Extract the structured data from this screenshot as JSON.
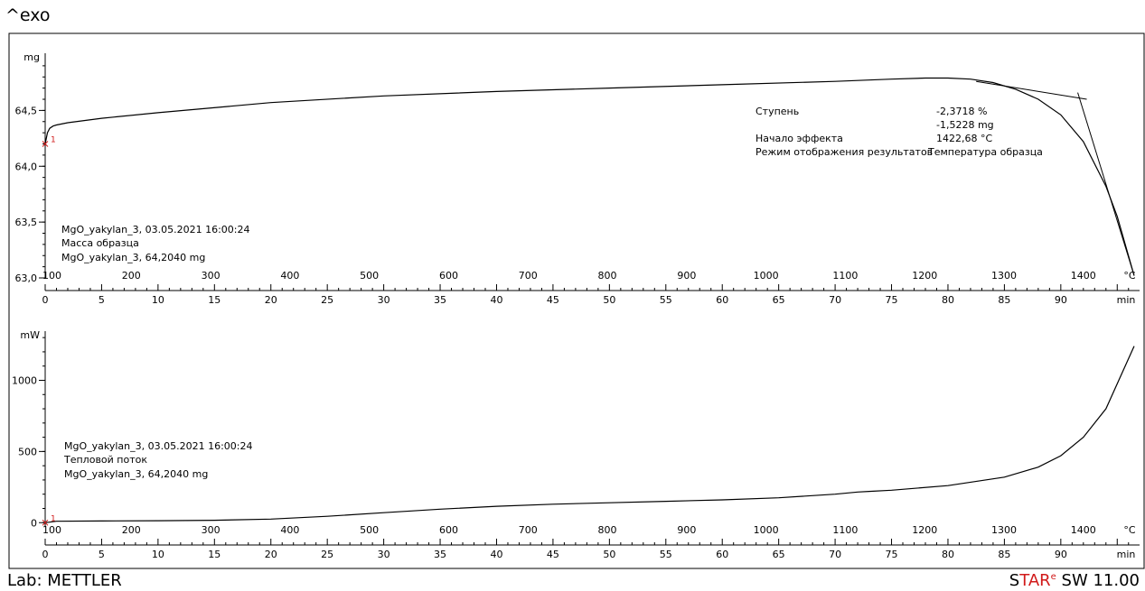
{
  "header": {
    "exo_label": "^exo"
  },
  "footer": {
    "lab": "Lab: METTLER",
    "software_star_s": "S",
    "software_tar": "TAR",
    "software_e": "e",
    "software_rest": " SW 11.00"
  },
  "chart_data": [
    {
      "type": "line",
      "name": "top-tga",
      "ylabel": "mg",
      "ylim": [
        63.0,
        64.98
      ],
      "yticks": [
        63.0,
        63.5,
        64.0,
        64.5
      ],
      "ytick_labels": [
        "63,0",
        "63,5",
        "64,0",
        "64,5"
      ],
      "time_axis": {
        "unit": "min",
        "lim": [
          0,
          96.5
        ],
        "ticks": [
          0,
          5,
          10,
          15,
          20,
          25,
          30,
          35,
          40,
          45,
          50,
          55,
          60,
          65,
          70,
          75,
          80,
          85,
          90
        ]
      },
      "temp_axis": {
        "unit": "°C",
        "ticks": [
          100,
          200,
          300,
          400,
          500,
          600,
          700,
          800,
          900,
          1000,
          1100,
          1200,
          1300,
          1400
        ]
      },
      "series": [
        {
          "x": [
            0,
            0.2,
            0.4,
            0.7,
            1,
            2,
            5,
            10,
            20,
            30,
            40,
            50,
            60,
            70,
            75,
            78,
            80,
            82,
            84,
            86,
            88,
            90,
            92,
            94,
            95,
            96.5
          ],
          "y": [
            64.2,
            64.3,
            64.34,
            64.36,
            64.37,
            64.39,
            64.43,
            64.48,
            64.57,
            64.63,
            64.67,
            64.7,
            64.73,
            64.76,
            64.78,
            64.79,
            64.79,
            64.78,
            64.75,
            64.69,
            64.6,
            64.46,
            64.22,
            63.82,
            63.55,
            63.02
          ],
          "color": "#000000"
        }
      ],
      "tangents": [
        {
          "x": [
            82.5,
            92.3
          ],
          "y": [
            64.76,
            64.6
          ]
        },
        {
          "x": [
            91.5,
            96.5
          ],
          "y": [
            64.66,
            63.02
          ]
        }
      ],
      "annotation": {
        "rows": [
          {
            "label": "Ступень",
            "value": "-2,3718 %"
          },
          {
            "label": "",
            "value": "-1,5228 mg"
          },
          {
            "label": "Начало эффекта",
            "value": "1422,68 °C"
          },
          {
            "label": "Режим отображения результатов",
            "value": "Температура образца"
          }
        ]
      },
      "info": [
        "MgO_yakylan_3, 03.05.2021 16:00:24",
        "Масса образца",
        "MgO_yakylan_3, 64,2040 mg"
      ]
    },
    {
      "type": "line",
      "name": "bottom-dsc",
      "ylabel": "mW",
      "ylim": [
        -30,
        1320
      ],
      "yticks": [
        0,
        500,
        1000
      ],
      "ytick_labels": [
        "0",
        "500",
        "1000"
      ],
      "time_axis": {
        "unit": "min",
        "lim": [
          0,
          96.5
        ],
        "ticks": [
          0,
          5,
          10,
          15,
          20,
          25,
          30,
          35,
          40,
          45,
          50,
          55,
          60,
          65,
          70,
          75,
          80,
          85,
          90
        ]
      },
      "temp_axis": {
        "unit": "°C",
        "ticks": [
          100,
          200,
          300,
          400,
          500,
          600,
          700,
          800,
          900,
          1000,
          1100,
          1200,
          1300,
          1400
        ]
      },
      "series": [
        {
          "x": [
            0,
            1,
            5,
            10,
            15,
            20,
            25,
            30,
            35,
            40,
            45,
            50,
            55,
            60,
            65,
            70,
            72,
            73,
            75,
            80,
            85,
            88,
            90,
            92,
            94,
            96.5
          ],
          "y": [
            0,
            10,
            12,
            14,
            17,
            25,
            45,
            70,
            95,
            115,
            130,
            140,
            150,
            160,
            175,
            200,
            215,
            220,
            228,
            260,
            320,
            390,
            470,
            600,
            800,
            1240
          ],
          "color": "#000000"
        }
      ],
      "info": [
        "MgO_yakylan_3, 03.05.2021 16:00:24",
        "Тепловой поток",
        "MgO_yakylan_3, 64,2040 mg"
      ]
    }
  ]
}
